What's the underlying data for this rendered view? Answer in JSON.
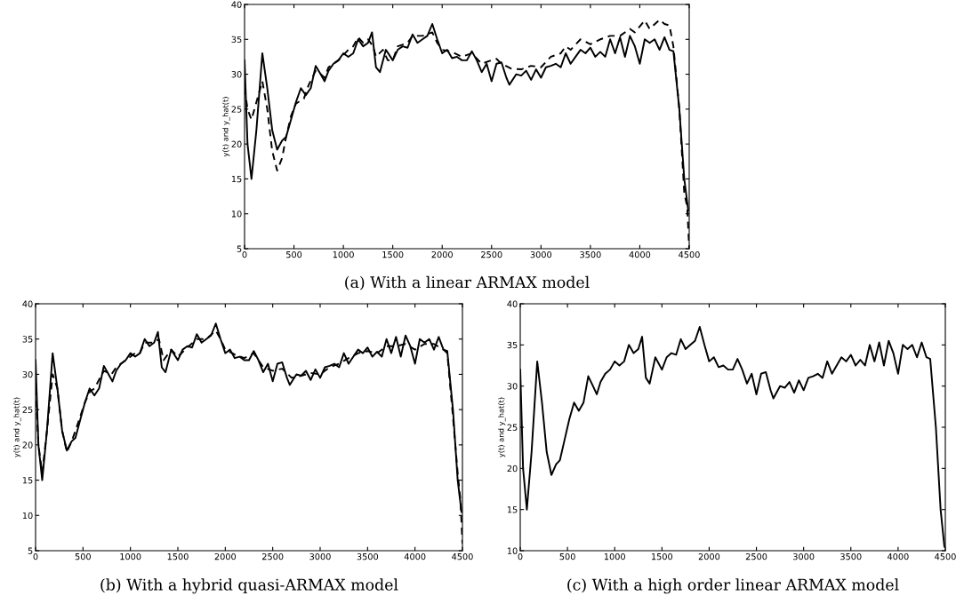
{
  "chart_data": [
    {
      "type": "line",
      "title": "(a) With a linear ARMAX model",
      "ylabel": "y(t) and y_hat(t)",
      "xlim": [
        0,
        4500
      ],
      "ylim": [
        5,
        40
      ],
      "xticks": [
        0,
        500,
        1000,
        1500,
        2000,
        2500,
        3000,
        3500,
        4000,
        4500
      ],
      "yticks": [
        5,
        10,
        15,
        20,
        25,
        30,
        35,
        40
      ],
      "grid": false,
      "legend": false,
      "series": [
        {
          "color": "#000000",
          "line_style": "solid",
          "x": [
            0,
            30,
            70,
            120,
            180,
            230,
            280,
            330,
            380,
            420,
            470,
            520,
            570,
            620,
            670,
            720,
            770,
            810,
            850,
            900,
            950,
            1000,
            1050,
            1100,
            1150,
            1200,
            1250,
            1290,
            1330,
            1370,
            1430,
            1500,
            1550,
            1600,
            1650,
            1700,
            1750,
            1800,
            1850,
            1900,
            1950,
            2000,
            2050,
            2100,
            2150,
            2200,
            2250,
            2300,
            2350,
            2400,
            2450,
            2500,
            2550,
            2600,
            2650,
            2680,
            2750,
            2800,
            2850,
            2900,
            2950,
            3000,
            3050,
            3100,
            3150,
            3200,
            3250,
            3300,
            3350,
            3400,
            3450,
            3500,
            3550,
            3600,
            3650,
            3700,
            3750,
            3800,
            3850,
            3900,
            3950,
            4000,
            4050,
            4100,
            4150,
            4200,
            4250,
            4300,
            4340,
            4400,
            4450,
            4490
          ],
          "values": [
            32,
            20,
            15,
            22,
            33,
            28,
            22,
            19.2,
            20.5,
            21,
            23.5,
            26,
            28,
            27,
            28,
            31.2,
            30,
            29,
            30.5,
            31.5,
            32,
            33,
            32.5,
            33,
            35,
            34,
            34.5,
            36,
            31,
            30.3,
            33.5,
            32,
            33.5,
            34,
            33.8,
            35.7,
            34.5,
            35,
            35.5,
            37.2,
            35,
            33,
            33.5,
            32.3,
            32.5,
            32,
            32,
            33.3,
            32,
            30.3,
            31.5,
            29,
            31.5,
            31.7,
            29.5,
            28.5,
            30,
            29.8,
            30.5,
            29.2,
            30.7,
            29.5,
            31,
            31.2,
            31.5,
            31,
            33,
            31.5,
            32.5,
            33.5,
            33,
            33.8,
            32.5,
            33.2,
            32.5,
            35,
            33,
            35.3,
            32.5,
            35.5,
            34,
            31.5,
            35,
            34.5,
            35,
            33.5,
            35.3,
            33.5,
            33.3,
            25,
            15,
            10.5
          ]
        },
        {
          "color": "#000000",
          "line_style": "dashed",
          "x": [
            0,
            30,
            70,
            120,
            180,
            230,
            280,
            330,
            380,
            420,
            470,
            520,
            600,
            650,
            720,
            770,
            810,
            850,
            950,
            1050,
            1100,
            1150,
            1200,
            1250,
            1300,
            1330,
            1400,
            1450,
            1500,
            1550,
            1650,
            1700,
            1800,
            1900,
            1950,
            2000,
            2100,
            2200,
            2300,
            2400,
            2500,
            2550,
            2600,
            2700,
            2800,
            2900,
            3000,
            3100,
            3200,
            3250,
            3300,
            3400,
            3500,
            3600,
            3700,
            3800,
            3900,
            3950,
            4050,
            4100,
            4200,
            4250,
            4300,
            4340,
            4400,
            4450,
            4480,
            4500
          ],
          "values": [
            28,
            25,
            23.5,
            26,
            29,
            25,
            19,
            16.2,
            18,
            21,
            24,
            25.8,
            26.5,
            28.5,
            30.5,
            30,
            29.5,
            31,
            32,
            33.5,
            34,
            35.3,
            34.5,
            35,
            34,
            32.5,
            33.5,
            32,
            32,
            34,
            34.5,
            35.5,
            35.5,
            36,
            34.5,
            33.5,
            33.2,
            32.5,
            33,
            31.5,
            32,
            32.2,
            31.5,
            30.8,
            30.7,
            31.2,
            31,
            32.5,
            33,
            34,
            33.5,
            35,
            34.3,
            35,
            35.5,
            35.5,
            36.5,
            36,
            37.7,
            36.5,
            37.8,
            37.2,
            37,
            34,
            25,
            13,
            11,
            5
          ]
        }
      ]
    },
    {
      "type": "line",
      "title": "(b) With a hybrid quasi-ARMAX model",
      "ylabel": "y(t) and y_hat(t)",
      "xlim": [
        0,
        4500
      ],
      "ylim": [
        5,
        40
      ],
      "xticks": [
        0,
        500,
        1000,
        1500,
        2000,
        2500,
        3000,
        3500,
        4000,
        4500
      ],
      "yticks": [
        5,
        10,
        15,
        20,
        25,
        30,
        35,
        40
      ],
      "grid": false,
      "legend": false,
      "series": [
        {
          "color": "#000000",
          "line_style": "solid",
          "x": [
            0,
            30,
            70,
            120,
            180,
            230,
            280,
            330,
            380,
            420,
            470,
            520,
            570,
            620,
            670,
            720,
            770,
            810,
            850,
            900,
            950,
            1000,
            1050,
            1100,
            1150,
            1200,
            1250,
            1290,
            1330,
            1370,
            1430,
            1500,
            1550,
            1600,
            1650,
            1700,
            1750,
            1800,
            1850,
            1900,
            1950,
            2000,
            2050,
            2100,
            2150,
            2200,
            2250,
            2300,
            2350,
            2400,
            2450,
            2500,
            2550,
            2600,
            2650,
            2680,
            2750,
            2800,
            2850,
            2900,
            2950,
            3000,
            3050,
            3100,
            3150,
            3200,
            3250,
            3300,
            3350,
            3400,
            3450,
            3500,
            3550,
            3600,
            3650,
            3700,
            3750,
            3800,
            3850,
            3900,
            3950,
            4000,
            4050,
            4100,
            4150,
            4200,
            4250,
            4300,
            4340,
            4400,
            4450,
            4490
          ],
          "values": [
            32,
            20,
            15,
            22,
            33,
            28,
            22,
            19.2,
            20.5,
            21,
            23.5,
            26,
            28,
            27,
            28,
            31.2,
            30,
            29,
            30.5,
            31.5,
            32,
            33,
            32.5,
            33,
            35,
            34,
            34.5,
            36,
            31,
            30.3,
            33.5,
            32,
            33.5,
            34,
            33.8,
            35.7,
            34.5,
            35,
            35.5,
            37.2,
            35,
            33,
            33.5,
            32.3,
            32.5,
            32,
            32,
            33.3,
            32,
            30.3,
            31.5,
            29,
            31.5,
            31.7,
            29.5,
            28.5,
            30,
            29.8,
            30.5,
            29.2,
            30.7,
            29.5,
            31,
            31.2,
            31.5,
            31,
            33,
            31.5,
            32.5,
            33.5,
            33,
            33.8,
            32.5,
            33.2,
            32.5,
            35,
            33,
            35.3,
            32.5,
            35.5,
            34,
            31.5,
            35,
            34.5,
            35,
            33.5,
            35.3,
            33.5,
            33.3,
            25,
            15,
            10.5
          ]
        },
        {
          "color": "#000000",
          "line_style": "dashed",
          "x": [
            0,
            30,
            70,
            120,
            180,
            230,
            280,
            330,
            380,
            420,
            470,
            520,
            570,
            620,
            720,
            800,
            850,
            950,
            1050,
            1100,
            1150,
            1250,
            1300,
            1350,
            1430,
            1500,
            1600,
            1700,
            1800,
            1900,
            1950,
            2000,
            2100,
            2200,
            2300,
            2400,
            2500,
            2600,
            2700,
            2800,
            2900,
            3000,
            3100,
            3200,
            3300,
            3400,
            3500,
            3600,
            3700,
            3800,
            3900,
            4000,
            4100,
            4200,
            4300,
            4340,
            4400,
            4450,
            4480,
            4500
          ],
          "values": [
            28,
            20,
            16,
            22,
            30,
            28,
            22,
            19,
            20.5,
            22,
            24,
            26,
            27.5,
            28,
            30.5,
            30,
            31,
            32,
            33,
            33,
            34.5,
            34.5,
            35,
            32,
            33.5,
            32.5,
            33.8,
            35,
            35,
            36.2,
            35,
            33.5,
            32.8,
            32.3,
            33,
            31,
            30.5,
            30.8,
            29.5,
            29.8,
            30.2,
            30,
            31,
            31.5,
            32.3,
            33,
            33.3,
            33,
            34,
            34,
            34.3,
            33.5,
            34.3,
            34.3,
            33.5,
            33,
            24,
            16,
            12,
            6
          ]
        }
      ]
    },
    {
      "type": "line",
      "title": "(c) With a high order linear ARMAX model",
      "ylabel": "y(t) and y_hat(t)",
      "xlim": [
        0,
        4500
      ],
      "ylim": [
        10,
        40
      ],
      "xticks": [
        0,
        500,
        1000,
        1500,
        2000,
        2500,
        3000,
        3500,
        4000,
        4500
      ],
      "yticks": [
        10,
        15,
        20,
        25,
        30,
        35,
        40
      ],
      "grid": false,
      "legend": false,
      "series": [
        {
          "color": "#000000",
          "line_style": "solid",
          "x": [
            0,
            30,
            70,
            120,
            180,
            230,
            280,
            330,
            380,
            420,
            470,
            520,
            570,
            620,
            670,
            720,
            770,
            810,
            850,
            900,
            950,
            1000,
            1050,
            1100,
            1150,
            1200,
            1250,
            1290,
            1330,
            1370,
            1430,
            1500,
            1550,
            1600,
            1650,
            1700,
            1750,
            1800,
            1850,
            1900,
            1950,
            2000,
            2050,
            2100,
            2150,
            2200,
            2250,
            2300,
            2350,
            2400,
            2450,
            2500,
            2550,
            2600,
            2650,
            2680,
            2750,
            2800,
            2850,
            2900,
            2950,
            3000,
            3050,
            3100,
            3150,
            3200,
            3250,
            3300,
            3350,
            3400,
            3450,
            3500,
            3550,
            3600,
            3650,
            3700,
            3750,
            3800,
            3850,
            3900,
            3950,
            4000,
            4050,
            4100,
            4150,
            4200,
            4250,
            4300,
            4340,
            4400,
            4450,
            4490
          ],
          "values": [
            32,
            20,
            15,
            22,
            33,
            28,
            22,
            19.2,
            20.5,
            21,
            23.5,
            26,
            28,
            27,
            28,
            31.2,
            30,
            29,
            30.5,
            31.5,
            32,
            33,
            32.5,
            33,
            35,
            34,
            34.5,
            36,
            31,
            30.3,
            33.5,
            32,
            33.5,
            34,
            33.8,
            35.7,
            34.5,
            35,
            35.5,
            37.2,
            35,
            33,
            33.5,
            32.3,
            32.5,
            32,
            32,
            33.3,
            32,
            30.3,
            31.5,
            29,
            31.5,
            31.7,
            29.5,
            28.5,
            30,
            29.8,
            30.5,
            29.2,
            30.7,
            29.5,
            31,
            31.2,
            31.5,
            31,
            33,
            31.5,
            32.5,
            33.5,
            33,
            33.8,
            32.5,
            33.2,
            32.5,
            35,
            33,
            35.3,
            32.5,
            35.5,
            34,
            31.5,
            35,
            34.5,
            35,
            33.5,
            35.3,
            33.5,
            33.3,
            25,
            15,
            10.5
          ]
        }
      ]
    }
  ]
}
